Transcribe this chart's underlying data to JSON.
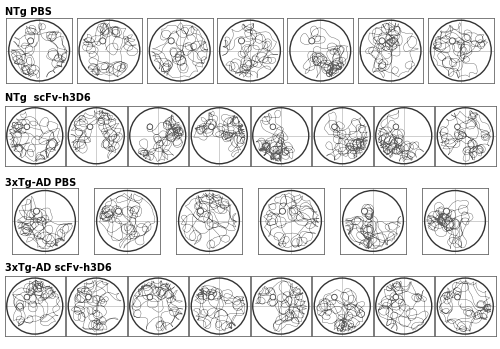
{
  "groups": [
    {
      "label": "NTg PBS",
      "n_animals": 7
    },
    {
      "label": "NTg  scFv-h3D6",
      "n_animals": 8
    },
    {
      "label": "3xTg-AD PBS",
      "n_animals": 6
    },
    {
      "label": "3xTg-AD scFv-h3D6",
      "n_animals": 8
    }
  ],
  "bg_color": "#ffffff",
  "label_fontsize": 7,
  "label_fontweight": "bold",
  "pool_color": "#333333",
  "trajectory_color": "#444444",
  "platform_color": "#ffffff",
  "platform_edge_color": "#444444",
  "crosshair_color": "#bbbbbb",
  "cell_border_color": "#666666",
  "seeds": [
    [
      42,
      17,
      99,
      23,
      55,
      81,
      37
    ],
    [
      11,
      66,
      44,
      29,
      73,
      8,
      91,
      56
    ],
    [
      31,
      62,
      18,
      85,
      50,
      77
    ],
    [
      14,
      38,
      71,
      25,
      93,
      47,
      60,
      82
    ]
  ],
  "platform_positions": [
    [
      [
        -0.28,
        0.32
      ],
      [
        -0.22,
        0.32
      ],
      [
        -0.28,
        0.32
      ],
      [
        -0.28,
        0.32
      ],
      [
        -0.28,
        0.32
      ],
      [
        -0.28,
        0.32
      ],
      [
        -0.28,
        0.32
      ]
    ],
    [
      [
        -0.28,
        0.32
      ],
      [
        -0.22,
        0.32
      ],
      [
        -0.28,
        0.32
      ],
      [
        -0.28,
        0.32
      ],
      [
        -0.28,
        0.32
      ],
      [
        -0.28,
        0.32
      ],
      [
        -0.28,
        0.32
      ],
      [
        -0.28,
        0.32
      ]
    ],
    [
      [
        -0.28,
        0.32
      ],
      [
        -0.28,
        0.32
      ],
      [
        -0.28,
        0.32
      ],
      [
        -0.28,
        0.32
      ],
      [
        -0.28,
        0.32
      ],
      [
        -0.28,
        0.32
      ]
    ],
    [
      [
        -0.28,
        0.32
      ],
      [
        -0.28,
        0.32
      ],
      [
        -0.28,
        0.32
      ],
      [
        -0.28,
        0.32
      ],
      [
        -0.28,
        0.32
      ],
      [
        -0.28,
        0.32
      ],
      [
        -0.28,
        0.32
      ],
      [
        -0.28,
        0.32
      ]
    ]
  ]
}
